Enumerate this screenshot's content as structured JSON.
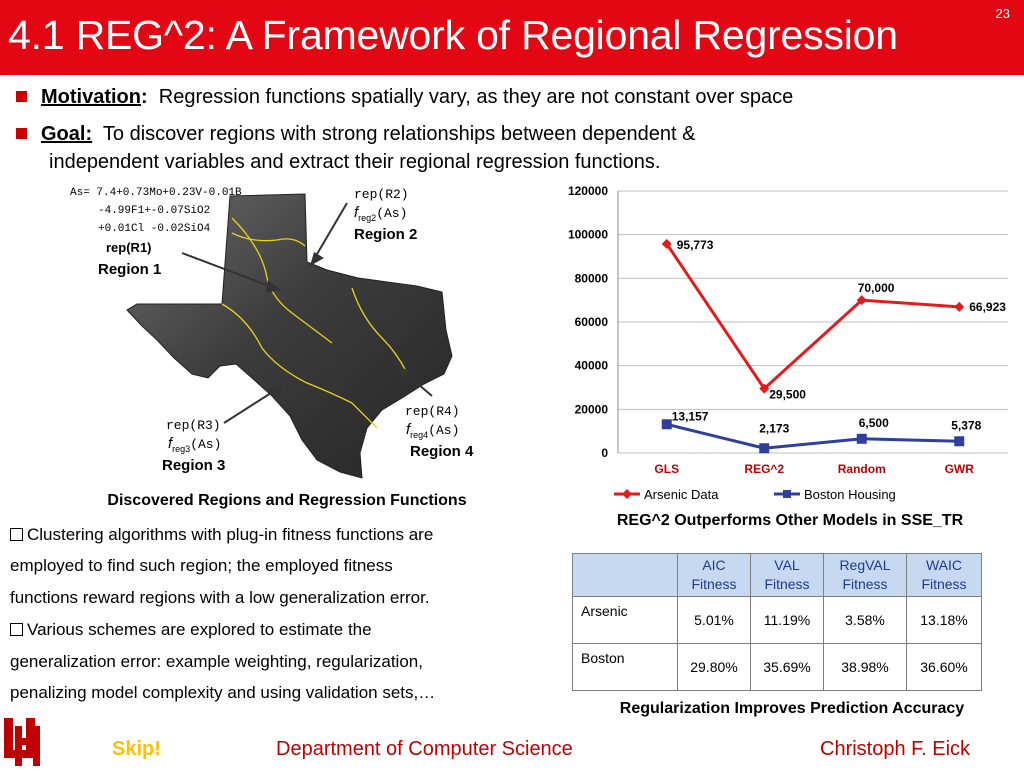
{
  "slide": {
    "title": "4.1 REG^2: A Framework of Regional Regression",
    "number": "23"
  },
  "bullets": {
    "motivation_label": "Motivation",
    "motivation_colon": ":",
    "motivation_text": "Regression functions spatially vary, as they are not constant over space",
    "goal_label": "Goal:",
    "goal_text": "To discover regions with strong relationships between dependent &",
    "goal_text_cont": "independent variables and extract their regional regression functions."
  },
  "map": {
    "equation_lines": [
      "As= 7.4+0.73Mo+0.23V-0.01B",
      "-4.99F1+-0.07SiO2",
      "+0.01Cl -0.02SiO4"
    ],
    "region1_rep": "rep(R1)",
    "region1": "Region 1",
    "region2_rep": "rep(R2)",
    "region2_f": "f",
    "region2_sub": "reg2",
    "region2_arg": "(As)",
    "region2": "Region 2",
    "region3_rep": "rep(R3)",
    "region3_f": "f",
    "region3_sub": "reg3",
    "region3_arg": "(As)",
    "region3": "Region 3",
    "region4_rep": "rep(R4)",
    "region4_f": "f",
    "region4_sub": "reg4",
    "region4_arg": "(As)",
    "region4": "Region 4",
    "caption": "Discovered Regions and Regression Functions"
  },
  "body_text": {
    "lines": [
      "Clustering algorithms with plug-in fitness functions are",
      "employed to find such region; the employed fitness",
      "functions reward regions with a low generalization error.",
      "Various schemes are explored to estimate the",
      "generalization error: example weighting, regularization,",
      "penalizing model complexity and using validation sets,…"
    ]
  },
  "chart_data": {
    "type": "line",
    "categories": [
      "GLS",
      "REG^2",
      "Random",
      "GWR"
    ],
    "series": [
      {
        "name": "Arsenic Data",
        "values": [
          95773,
          29500,
          70000,
          66923
        ],
        "labels": [
          "95,773",
          "29,500",
          "70,000",
          "66,923"
        ],
        "color": "#e31b1b",
        "marker": "diamond"
      },
      {
        "name": "Boston Housing",
        "values": [
          13157,
          2173,
          6500,
          5378
        ],
        "labels": [
          "13,157",
          "2,173",
          "6,500",
          "5,378"
        ],
        "color": "#2e3f9e",
        "marker": "square"
      }
    ],
    "ylim": [
      0,
      120000
    ],
    "yticks": [
      "0",
      "20000",
      "40000",
      "60000",
      "80000",
      "100000",
      "120000"
    ],
    "grid": true,
    "legend_position": "bottom",
    "category_label_color": "#c00000",
    "caption": "REG^2 Outperforms Other Models in SSE_TR"
  },
  "table": {
    "headers": [
      [
        "AIC",
        "Fitness"
      ],
      [
        "VAL",
        "Fitness"
      ],
      [
        "RegVAL",
        "Fitness"
      ],
      [
        "WAIC",
        "Fitness"
      ]
    ],
    "rows": [
      {
        "label": "Arsenic",
        "values": [
          "5.01%",
          "11.19%",
          "3.58%",
          "13.18%"
        ]
      },
      {
        "label": "Boston",
        "values": [
          "29.80%",
          "35.69%",
          "38.98%",
          "36.60%"
        ]
      }
    ],
    "caption": "Regularization Improves Prediction Accuracy"
  },
  "footer": {
    "skip": "Skip!",
    "department": "Department of Computer Science",
    "author": "Christoph F. Eick"
  },
  "colors": {
    "title_bar": "#e30613",
    "bullet": "#cc0000",
    "table_header": "#c6d9f1",
    "footer_text": "#c00000",
    "skip": "#ffc000"
  }
}
